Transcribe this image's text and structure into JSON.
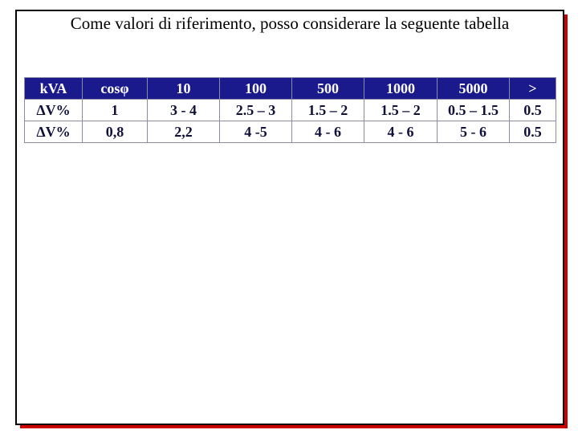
{
  "title": "Come valori di riferimento, posso considerare la seguente tabella",
  "table": {
    "header": [
      "kVA",
      "cosφ",
      "10",
      "100",
      "500",
      "1000",
      "5000",
      ">"
    ],
    "rows": [
      [
        "ΔV%",
        "1",
        "3 - 4",
        "2.5 – 3",
        "1.5 – 2",
        "1.5 – 2",
        "0.5 – 1.5",
        "0.5"
      ],
      [
        "ΔV%",
        "0,8",
        "2,2",
        "4 -5",
        "4 - 6",
        "4 - 6",
        "5 - 6",
        "0.5"
      ]
    ]
  }
}
